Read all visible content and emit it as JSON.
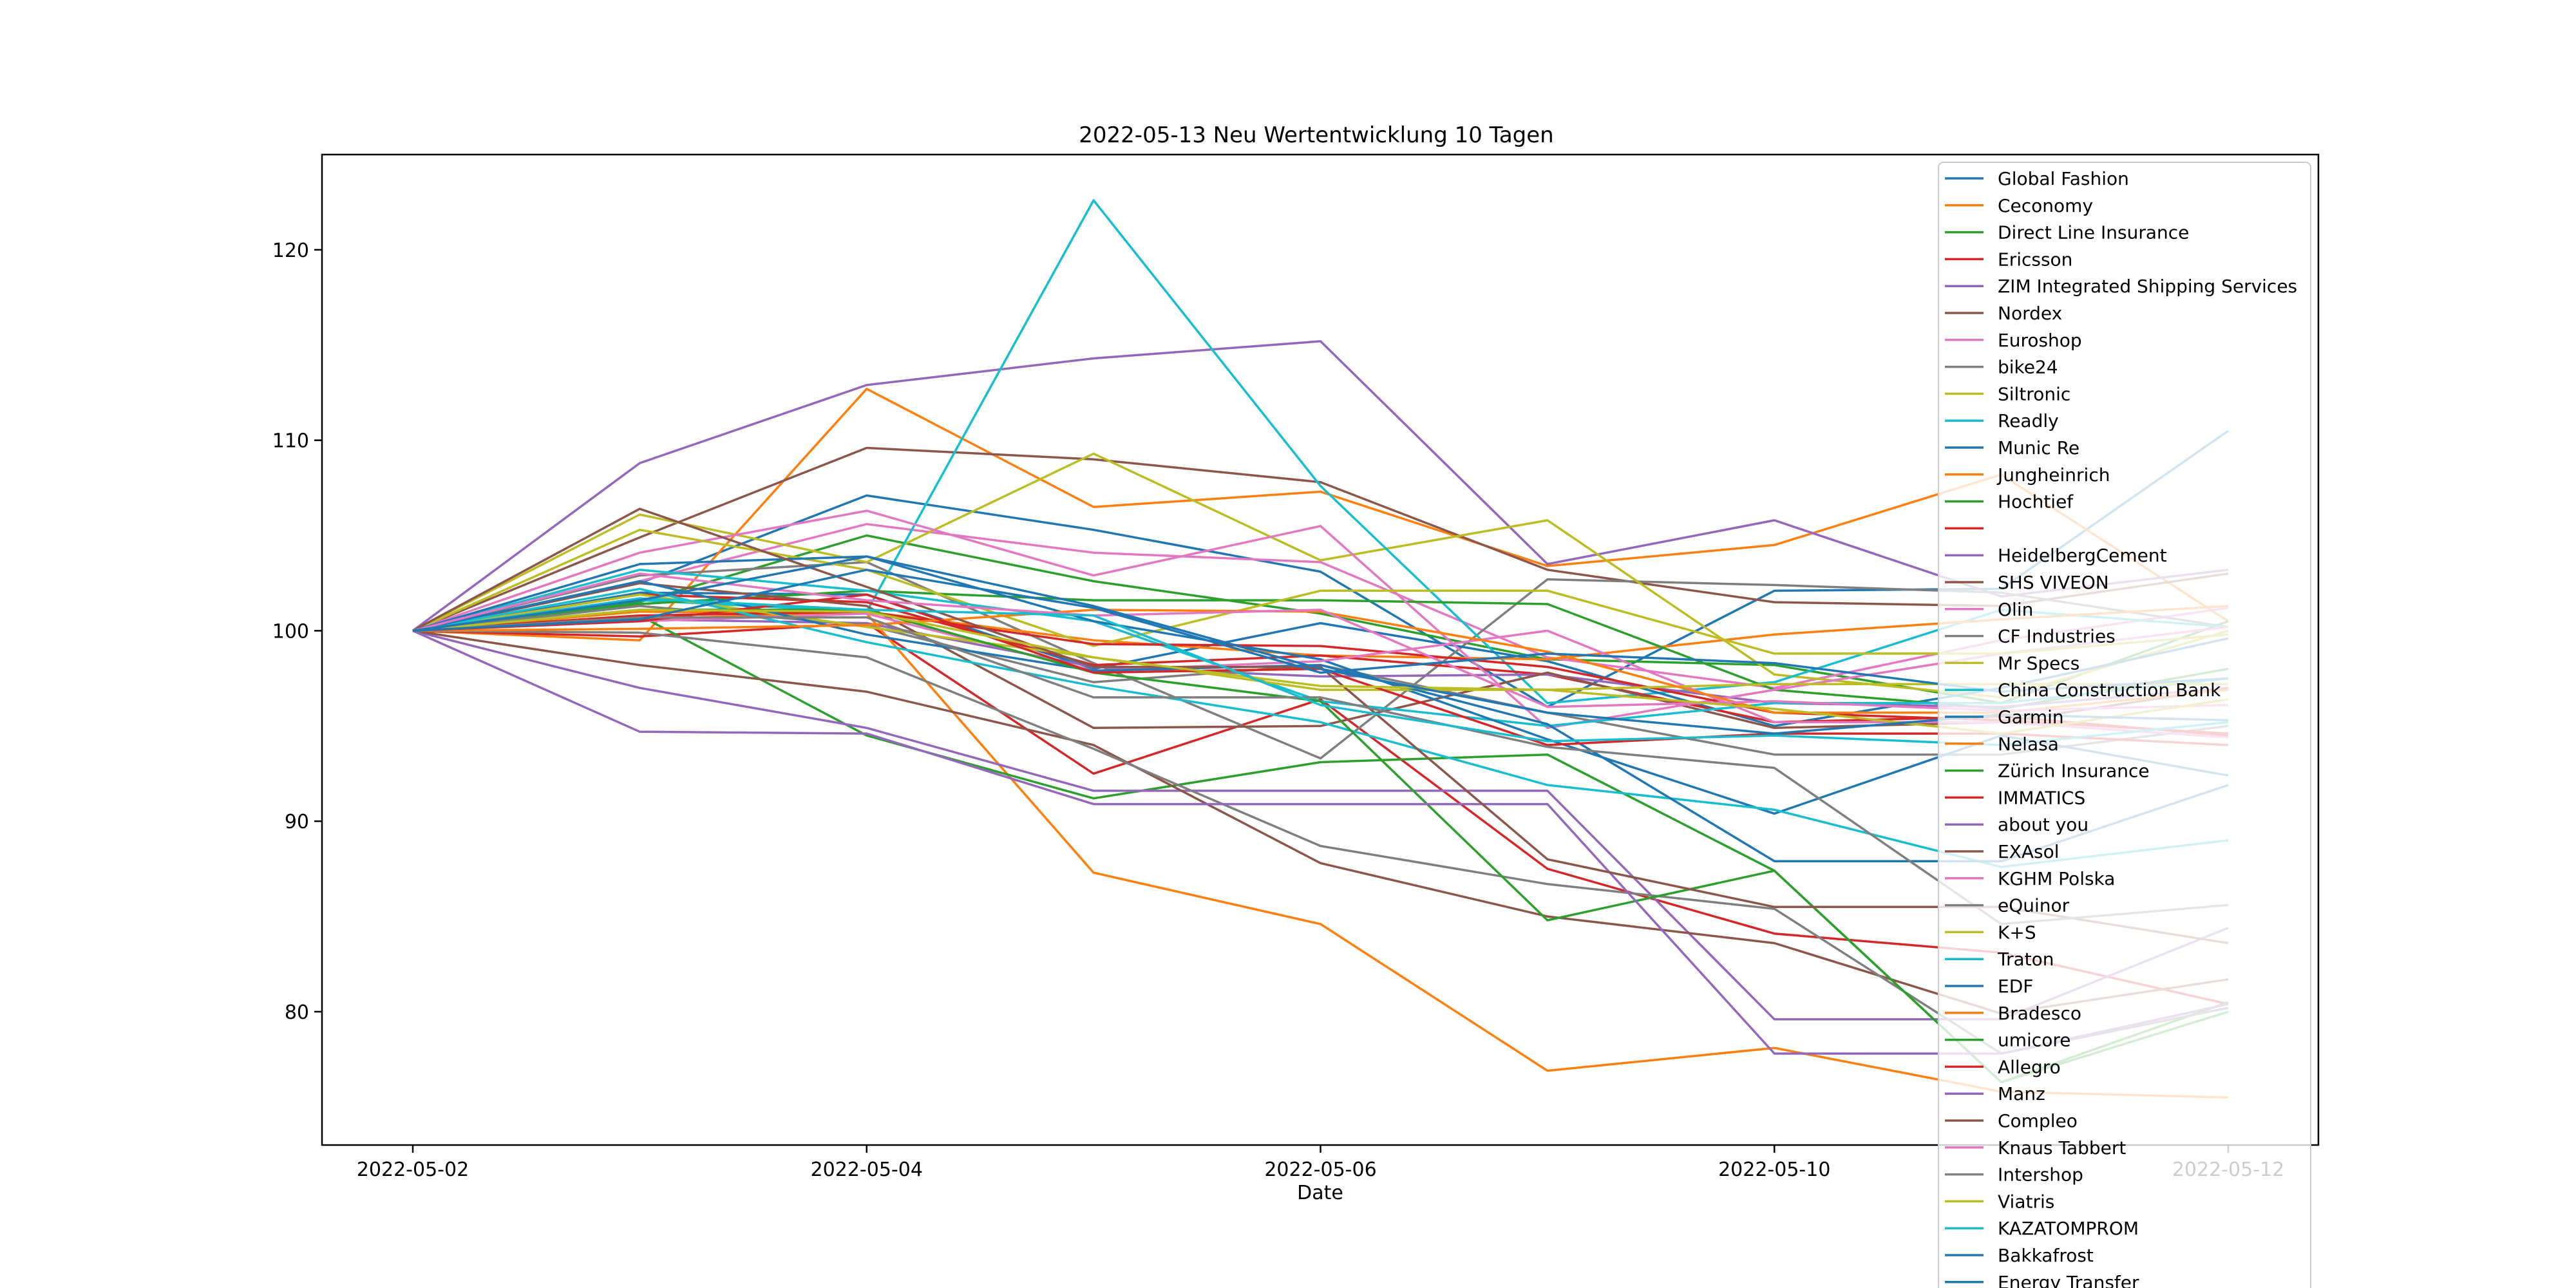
{
  "chart_data": {
    "type": "line",
    "title": "2022-05-13 Neu Wertentwicklung 10 Tagen",
    "xlabel": "Date",
    "ylabel": "",
    "x": [
      "2022-05-02",
      "2022-05-03",
      "2022-05-04",
      "2022-05-05",
      "2022-05-06",
      "2022-05-09",
      "2022-05-10",
      "2022-05-11",
      "2022-05-12"
    ],
    "x_tick_labels": [
      "2022-05-02",
      "2022-05-04",
      "2022-05-06",
      "2022-05-10",
      "2022-05-12"
    ],
    "ylim": [
      73,
      125
    ],
    "y_ticks": [
      80,
      90,
      100,
      110,
      120
    ],
    "grid": false,
    "legend_position": "right",
    "series": [
      {
        "name": "Global Fashion",
        "color": "#1f77b4",
        "values": [
          100,
          102.5,
          107.1,
          105.3,
          103.1,
          96.0,
          102.1,
          102.2,
          110.5
        ]
      },
      {
        "name": "Ceconomy",
        "color": "#ff7f0e",
        "values": [
          100,
          99.5,
          112.7,
          106.5,
          107.3,
          103.4,
          104.5,
          108.2,
          100.5
        ]
      },
      {
        "name": "Direct Line Insurance",
        "color": "#2ca02c",
        "values": [
          100,
          101.5,
          105.0,
          102.6,
          100.9,
          98.5,
          98.2,
          96.2,
          100.5
        ]
      },
      {
        "name": "Ericsson",
        "color": "#d62728",
        "values": [
          100,
          99.7,
          100.4,
          92.5,
          96.4,
          87.5,
          84.1,
          83.1,
          80.4
        ]
      },
      {
        "name": "ZIM Integrated Shipping Services",
        "color": "#9467bd",
        "values": [
          100,
          108.8,
          112.9,
          114.3,
          115.2,
          103.5,
          105.8,
          101.8,
          103.2
        ]
      },
      {
        "name": "Nordex",
        "color": "#8c564b",
        "values": [
          100,
          104.9,
          109.6,
          109.0,
          107.8,
          103.2,
          101.5,
          101.3,
          103.0
        ]
      },
      {
        "name": "Euroshop",
        "color": "#e377c2",
        "values": [
          100,
          102.6,
          105.6,
          104.1,
          103.6,
          98.6,
          97.0,
          99.5,
          101.2
        ]
      },
      {
        "name": "bike24",
        "color": "#7f7f7f",
        "values": [
          100,
          102.9,
          103.6,
          98.3,
          93.3,
          102.7,
          102.4,
          102.0,
          100.2
        ]
      },
      {
        "name": "Siltronic",
        "color": "#bcbd22",
        "values": [
          100,
          106.1,
          103.6,
          109.3,
          103.7,
          105.8,
          97.7,
          96.5,
          100.0
        ]
      },
      {
        "name": "Readly",
        "color": "#17becf",
        "values": [
          100,
          101.6,
          101.0,
          122.6,
          107.6,
          96.2,
          97.3,
          101.1,
          100.2
        ]
      },
      {
        "name": "Munic Re",
        "color": "#1f77b4",
        "values": [
          100,
          102.0,
          101.9,
          98.0,
          100.4,
          98.4,
          95.0,
          97.0,
          99.6
        ]
      },
      {
        "name": "Jungheinrich",
        "color": "#ff7f0e",
        "values": [
          100,
          100.6,
          101.0,
          99.5,
          98.7,
          98.5,
          99.8,
          100.6,
          101.3
        ]
      },
      {
        "name": "Hochtief",
        "color": "#2ca02c",
        "values": [
          100,
          101.4,
          102.1,
          101.6,
          101.6,
          101.4,
          96.9,
          95.9,
          98.0
        ]
      },
      {
        "name": "",
        "color": "#d62728",
        "values": [
          100,
          101.9,
          101.5,
          98.2,
          98.7,
          97.7,
          95.2,
          95.5,
          94.5
        ]
      },
      {
        "name": "HeidelbergCement",
        "color": "#9467bd",
        "values": [
          100,
          100.6,
          100.4,
          98.1,
          97.6,
          97.7,
          96.2,
          96.0,
          97.0
        ]
      },
      {
        "name": "SHS VIVEON",
        "color": "#8c564b",
        "values": [
          100,
          102.5,
          101.3,
          94.9,
          95.0,
          97.8,
          94.9,
          95.2,
          97.0
        ]
      },
      {
        "name": "Olin",
        "color": "#e377c2",
        "values": [
          100,
          104.1,
          106.3,
          102.9,
          105.5,
          94.9,
          96.9,
          98.8,
          100.2
        ]
      },
      {
        "name": "CF Industries",
        "color": "#7f7f7f",
        "values": [
          100,
          101.3,
          100.3,
          97.3,
          98.2,
          95.7,
          93.5,
          93.5,
          95.0
        ]
      },
      {
        "name": "Mr Specs",
        "color": "#bcbd22",
        "values": [
          100,
          105.3,
          103.2,
          99.2,
          102.1,
          102.1,
          98.8,
          98.8,
          99.8
        ]
      },
      {
        "name": "China Construction Bank",
        "color": "#17becf",
        "values": [
          100,
          103.2,
          102.1,
          100.5,
          96.3,
          95.0,
          96.2,
          96.2,
          97.5
        ]
      },
      {
        "name": "Garmin",
        "color": "#1f77b4",
        "values": [
          100,
          103.5,
          103.9,
          100.5,
          98.5,
          94.3,
          90.4,
          94.5,
          92.4
        ]
      },
      {
        "name": "Nelasa",
        "color": "#ff7f0e",
        "values": [
          100,
          101.0,
          100.9,
          87.3,
          84.6,
          76.9,
          78.1,
          75.8,
          75.5
        ]
      },
      {
        "name": "Zürich Insurance",
        "color": "#2ca02c",
        "values": [
          100,
          100.8,
          94.5,
          91.2,
          93.1,
          93.5,
          87.4,
          76.3,
          80.5
        ]
      },
      {
        "name": "IMMATICS",
        "color": "#d62728",
        "values": [
          100,
          100.8,
          101.0,
          99.3,
          99.2,
          98.1,
          95.7,
          95.3,
          94.6
        ]
      },
      {
        "name": "about you",
        "color": "#9467bd",
        "values": [
          100,
          97.0,
          94.9,
          91.6,
          91.6,
          91.6,
          79.6,
          79.6,
          84.4
        ]
      },
      {
        "name": "EXAsol",
        "color": "#8c564b",
        "values": [
          100,
          98.2,
          96.8,
          94.0,
          87.8,
          85.0,
          83.6,
          79.9,
          81.7
        ]
      },
      {
        "name": "KGHM Polska",
        "color": "#e377c2",
        "values": [
          100,
          100.5,
          100.9,
          97.9,
          98.4,
          100.0,
          95.2,
          95.2,
          94.4
        ]
      },
      {
        "name": "eQuinor",
        "color": "#7f7f7f",
        "values": [
          100,
          99.9,
          98.6,
          93.8,
          88.7,
          86.7,
          85.4,
          77.8,
          80.2
        ]
      },
      {
        "name": "K+S",
        "color": "#bcbd22",
        "values": [
          100,
          101.9,
          100.2,
          98.6,
          96.9,
          96.9,
          97.2,
          97.2,
          97.2
        ]
      },
      {
        "name": "Traton",
        "color": "#17becf",
        "values": [
          100,
          102.2,
          99.4,
          97.1,
          95.2,
          91.9,
          90.6,
          87.6,
          89.0
        ]
      },
      {
        "name": "EDF",
        "color": "#1f77b4",
        "values": [
          100,
          102.6,
          99.8,
          97.9,
          98.2,
          95.1,
          87.9,
          87.9,
          91.9
        ]
      },
      {
        "name": "Bradesco",
        "color": "#ff7f0e",
        "values": [
          100,
          100.1,
          100.3,
          101.1,
          101.0,
          98.9,
          95.7,
          95.7,
          96.9
        ]
      },
      {
        "name": "umicore",
        "color": "#2ca02c",
        "values": [
          100,
          101.1,
          101.1,
          97.8,
          96.3,
          84.8,
          87.4,
          76.3,
          80.0
        ]
      },
      {
        "name": "Allegro",
        "color": "#d62728",
        "values": [
          100,
          100.5,
          101.9,
          97.8,
          98.0,
          94.0,
          94.6,
          94.6,
          94.0
        ]
      },
      {
        "name": "Manz",
        "color": "#9467bd",
        "values": [
          100,
          94.7,
          94.6,
          90.9,
          90.9,
          90.9,
          77.8,
          77.8,
          80.4
        ]
      },
      {
        "name": "Compleo",
        "color": "#8c564b",
        "values": [
          100,
          106.4,
          102.3,
          98.1,
          98.1,
          88.0,
          85.5,
          85.5,
          83.6
        ]
      },
      {
        "name": "Knaus Tabbert",
        "color": "#e377c2",
        "values": [
          100,
          103.0,
          101.6,
          100.8,
          101.1,
          96.0,
          96.3,
          95.8,
          96.1
        ]
      },
      {
        "name": "Intershop",
        "color": "#7f7f7f",
        "values": [
          100,
          100.7,
          100.7,
          96.5,
          96.5,
          93.9,
          92.8,
          84.6,
          85.6
        ]
      },
      {
        "name": "Viatris",
        "color": "#bcbd22",
        "values": [
          100,
          101.1,
          101.0,
          98.6,
          97.1,
          96.9,
          95.9,
          94.6,
          96.4
        ]
      },
      {
        "name": "KAZATOMPROM",
        "color": "#17becf",
        "values": [
          100,
          101.7,
          101.1,
          100.8,
          96.1,
          94.2,
          94.5,
          94.0,
          95.2
        ]
      },
      {
        "name": "Bakkafrost",
        "color": "#1f77b4",
        "values": [
          100,
          100.6,
          103.2,
          101.2,
          97.8,
          98.8,
          98.3,
          96.8,
          97.5
        ]
      },
      {
        "name": "Energy Transfer",
        "color": "#1f77b4",
        "values": [
          100,
          101.6,
          103.9,
          101.3,
          98.0,
          95.7,
          94.6,
          95.6,
          95.3
        ]
      }
    ]
  }
}
